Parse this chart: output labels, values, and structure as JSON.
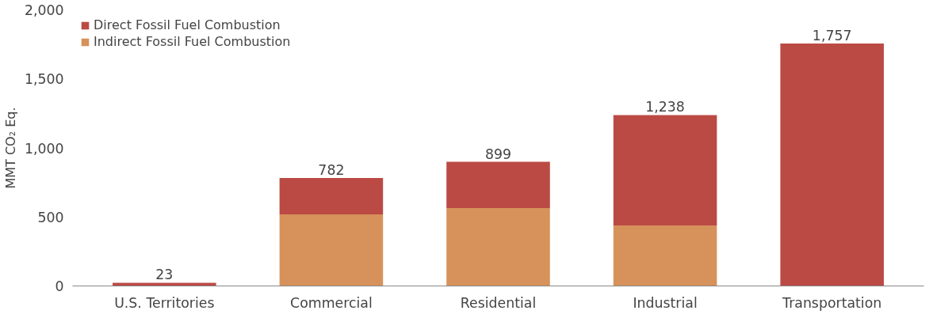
{
  "chart_data": {
    "type": "bar",
    "stacked": true,
    "ylabel": "MMT CO₂ Eq.",
    "categories": [
      "U.S. Territories",
      "Commercial",
      "Residential",
      "Industrial",
      "Transportation"
    ],
    "series": [
      {
        "name": "Indirect Fossil Fuel Combustion",
        "color": "#d6925a",
        "values": [
          0,
          519,
          565,
          439,
          0
        ]
      },
      {
        "name": "Direct Fossil Fuel Combustion",
        "color": "#bb4a45",
        "values": [
          23,
          263,
          334,
          799,
          1757
        ]
      }
    ],
    "totals": [
      "23",
      "782",
      "899",
      "1,238",
      "1,757"
    ],
    "ylim": [
      0,
      2000
    ],
    "yticks": [
      0,
      500,
      {
        "value": 1000,
        "label": "1,000"
      },
      {
        "value": 1500,
        "label": "1,500"
      },
      {
        "value": 2000,
        "label": "2,000"
      }
    ],
    "grid": false,
    "legend": "top left"
  }
}
